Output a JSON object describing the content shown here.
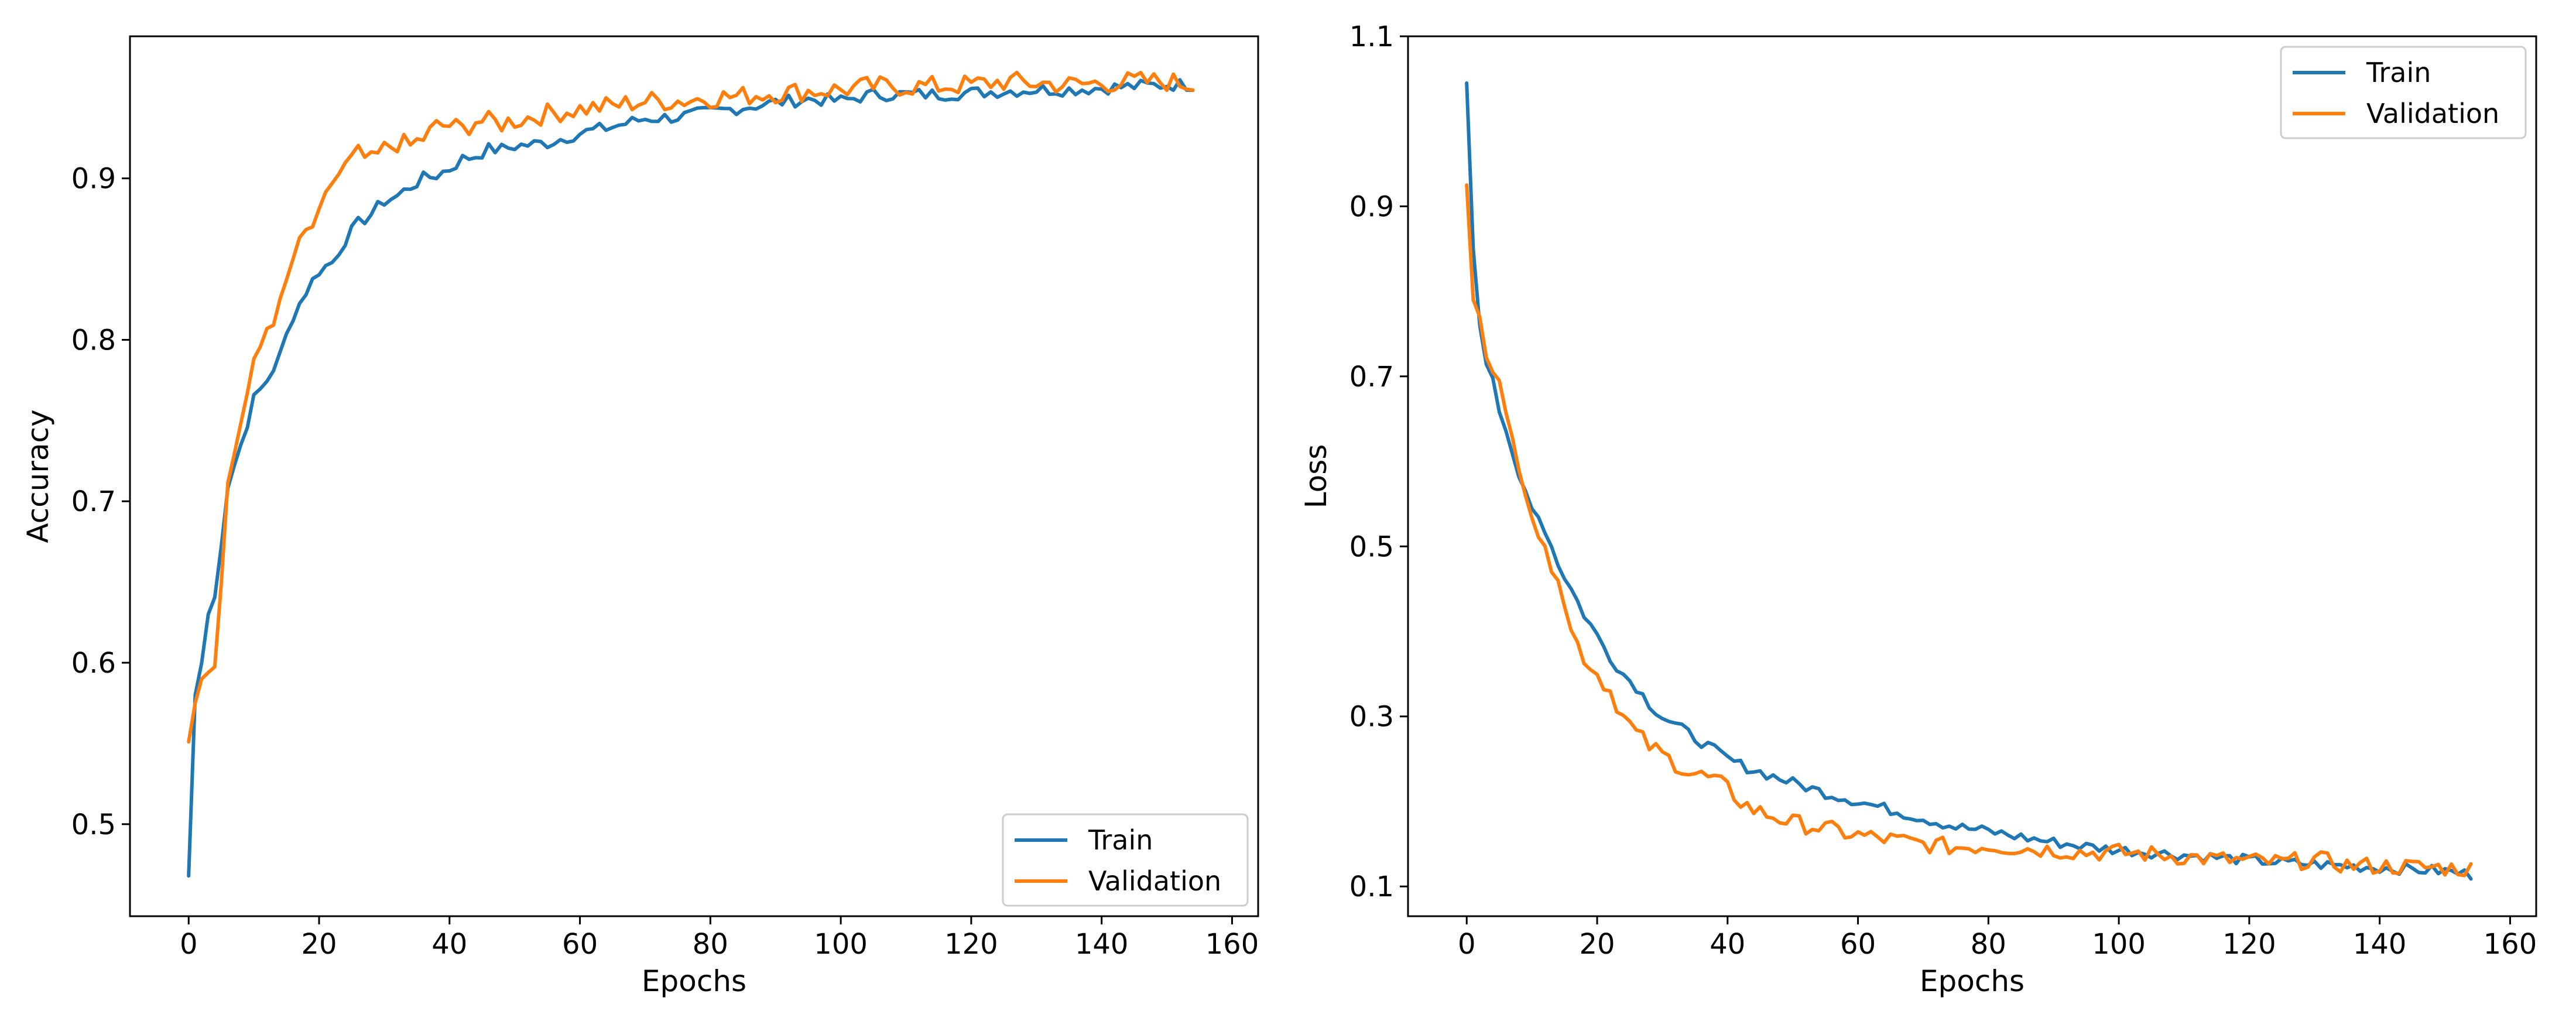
{
  "colors": {
    "train": "#1f77b4",
    "validation": "#ff7f0e"
  },
  "chart_data": [
    {
      "type": "line",
      "title": "",
      "xlabel": "Epochs",
      "ylabel": "Accuracy",
      "xlim": [
        -9,
        164
      ],
      "ylim": [
        0.443,
        0.988
      ],
      "xticks": [
        0,
        20,
        40,
        60,
        80,
        100,
        120,
        140,
        160
      ],
      "yticks": [
        0.5,
        0.6,
        0.7,
        0.8,
        0.9
      ],
      "ytick_labels": [
        "0.5",
        "0.6",
        "0.7",
        "0.8",
        "0.9"
      ],
      "legend": {
        "position": "lower-right",
        "entries": [
          "Train",
          "Validation"
        ]
      },
      "series": [
        {
          "name": "Train",
          "x": [
            0,
            1,
            2,
            3,
            4,
            6,
            8,
            10,
            12,
            14,
            16,
            18,
            20,
            22,
            24,
            26,
            28,
            30,
            32,
            34,
            36,
            38,
            40,
            42,
            44,
            46,
            48,
            50,
            55,
            60,
            65,
            70,
            75,
            80,
            85,
            90,
            95,
            100,
            105,
            110,
            115,
            120,
            125,
            130,
            135,
            140,
            145,
            150,
            154
          ],
          "y": [
            0.468,
            0.58,
            0.6,
            0.63,
            0.64,
            0.71,
            0.735,
            0.763,
            0.775,
            0.79,
            0.815,
            0.83,
            0.843,
            0.848,
            0.862,
            0.872,
            0.878,
            0.886,
            0.889,
            0.895,
            0.9,
            0.902,
            0.906,
            0.912,
            0.914,
            0.918,
            0.918,
            0.92,
            0.922,
            0.928,
            0.932,
            0.937,
            0.938,
            0.941,
            0.944,
            0.947,
            0.949,
            0.948,
            0.952,
            0.952,
            0.952,
            0.953,
            0.954,
            0.955,
            0.955,
            0.956,
            0.957,
            0.958,
            0.958
          ]
        },
        {
          "name": "Validation",
          "x": [
            0,
            1,
            2,
            3,
            4,
            6,
            8,
            10,
            12,
            14,
            16,
            18,
            20,
            22,
            24,
            26,
            28,
            30,
            32,
            34,
            36,
            38,
            40,
            42,
            44,
            46,
            48,
            50,
            55,
            60,
            65,
            70,
            75,
            80,
            85,
            90,
            95,
            100,
            105,
            110,
            115,
            120,
            125,
            130,
            135,
            140,
            145,
            150,
            154
          ],
          "y": [
            0.551,
            0.575,
            0.59,
            0.598,
            0.6,
            0.71,
            0.75,
            0.783,
            0.808,
            0.82,
            0.85,
            0.866,
            0.875,
            0.898,
            0.907,
            0.915,
            0.91,
            0.918,
            0.922,
            0.92,
            0.925,
            0.932,
            0.933,
            0.93,
            0.936,
            0.935,
            0.934,
            0.936,
            0.94,
            0.943,
            0.945,
            0.948,
            0.948,
            0.95,
            0.951,
            0.953,
            0.954,
            0.955,
            0.957,
            0.957,
            0.957,
            0.958,
            0.96,
            0.959,
            0.958,
            0.959,
            0.96,
            0.96,
            0.958
          ]
        }
      ]
    },
    {
      "type": "line",
      "title": "",
      "xlabel": "Epochs",
      "ylabel": "Loss",
      "xlim": [
        -9,
        164
      ],
      "ylim": [
        0.065,
        1.1
      ],
      "xticks": [
        0,
        20,
        40,
        60,
        80,
        100,
        120,
        140,
        160
      ],
      "yticks": [
        0.1,
        0.3,
        0.5,
        0.7,
        0.9,
        1.1
      ],
      "ytick_labels": [
        "0.1",
        "0.3",
        "0.5",
        "0.7",
        "0.9",
        "1.1"
      ],
      "legend": {
        "position": "upper-right",
        "entries": [
          "Train",
          "Validation"
        ]
      },
      "series": [
        {
          "name": "Train",
          "x": [
            0,
            1,
            2,
            3,
            4,
            5,
            6,
            8,
            10,
            12,
            14,
            16,
            18,
            20,
            22,
            24,
            26,
            28,
            30,
            32,
            34,
            36,
            38,
            40,
            42,
            44,
            46,
            48,
            50,
            55,
            60,
            65,
            70,
            75,
            80,
            85,
            90,
            95,
            100,
            105,
            110,
            115,
            120,
            125,
            130,
            135,
            140,
            145,
            150,
            154
          ],
          "y": [
            1.045,
            0.85,
            0.76,
            0.72,
            0.7,
            0.66,
            0.63,
            0.58,
            0.55,
            0.52,
            0.48,
            0.45,
            0.42,
            0.395,
            0.37,
            0.35,
            0.335,
            0.315,
            0.3,
            0.29,
            0.28,
            0.27,
            0.26,
            0.25,
            0.243,
            0.237,
            0.232,
            0.227,
            0.222,
            0.21,
            0.2,
            0.19,
            0.18,
            0.17,
            0.165,
            0.158,
            0.152,
            0.147,
            0.143,
            0.14,
            0.137,
            0.134,
            0.131,
            0.128,
            0.126,
            0.124,
            0.122,
            0.12,
            0.118,
            0.114
          ]
        },
        {
          "name": "Validation",
          "x": [
            0,
            1,
            2,
            3,
            4,
            5,
            6,
            8,
            10,
            12,
            14,
            16,
            18,
            20,
            22,
            24,
            26,
            28,
            30,
            32,
            34,
            36,
            38,
            40,
            42,
            44,
            46,
            48,
            50,
            55,
            60,
            65,
            70,
            75,
            80,
            85,
            90,
            95,
            100,
            105,
            110,
            115,
            120,
            125,
            130,
            135,
            140,
            145,
            150,
            154
          ],
          "y": [
            0.925,
            0.79,
            0.77,
            0.73,
            0.715,
            0.69,
            0.65,
            0.6,
            0.54,
            0.49,
            0.47,
            0.4,
            0.37,
            0.35,
            0.33,
            0.3,
            0.28,
            0.265,
            0.255,
            0.245,
            0.235,
            0.23,
            0.225,
            0.215,
            0.2,
            0.19,
            0.185,
            0.18,
            0.175,
            0.168,
            0.16,
            0.155,
            0.15,
            0.146,
            0.148,
            0.145,
            0.143,
            0.14,
            0.14,
            0.138,
            0.135,
            0.132,
            0.13,
            0.128,
            0.132,
            0.125,
            0.124,
            0.123,
            0.122,
            0.12
          ]
        }
      ]
    }
  ]
}
